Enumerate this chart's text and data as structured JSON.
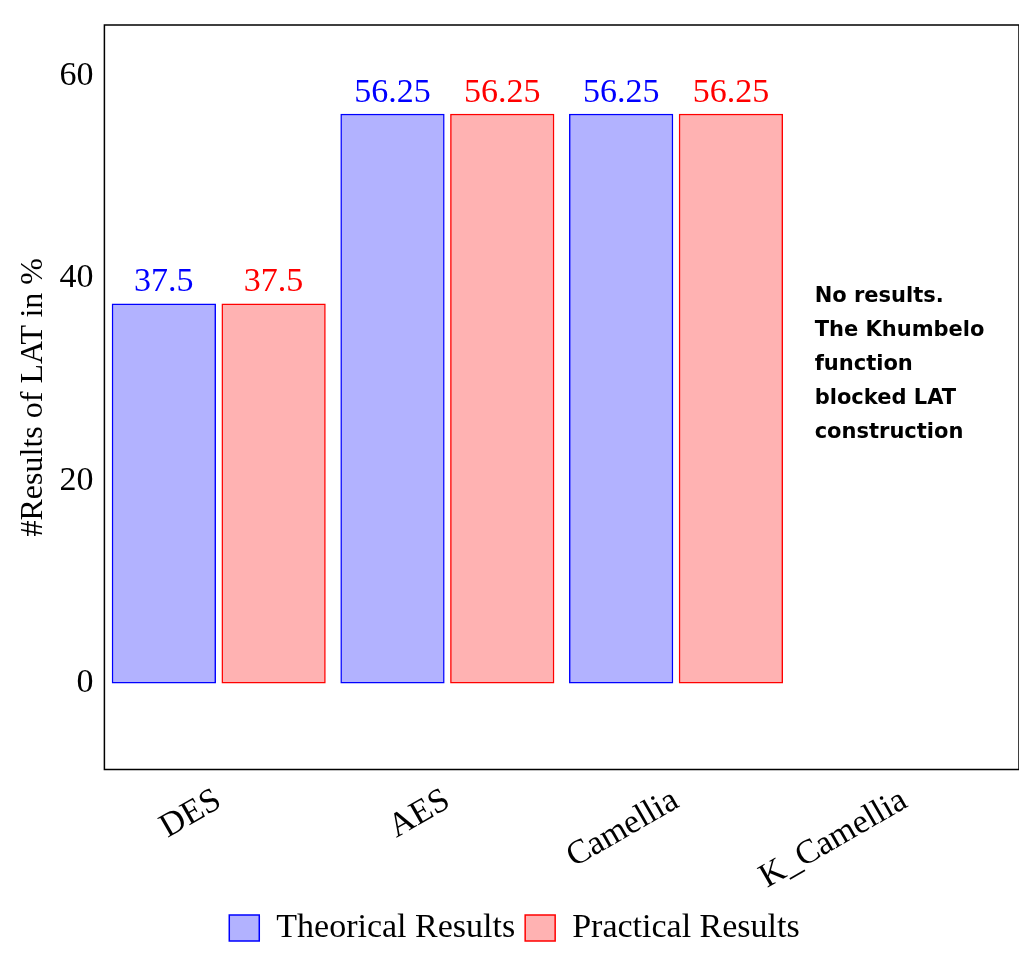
{
  "chart_data": {
    "type": "bar",
    "ylabel": "#Results of LAT in %",
    "categories": [
      "DES",
      "AES",
      "Camellia",
      "K_Camellia"
    ],
    "series": [
      {
        "name": "Theorical Results",
        "color": "#0000ff",
        "values": [
          37.5,
          56.25,
          56.25,
          0
        ],
        "value_labels": [
          "37.5",
          "56.25",
          "56.25",
          null
        ]
      },
      {
        "name": "Practical Results",
        "color": "#ff0000",
        "values": [
          37.5,
          56.25,
          56.25,
          0
        ],
        "value_labels": [
          "37.5",
          "56.25",
          "56.25",
          null
        ]
      }
    ],
    "ylim": [
      -8.5,
      65
    ],
    "yticks": [
      0,
      20,
      40,
      60
    ],
    "grid": false,
    "legend": "bottom",
    "annotations": [
      "No results. The Khumbelo function blocked LAT construction"
    ]
  }
}
